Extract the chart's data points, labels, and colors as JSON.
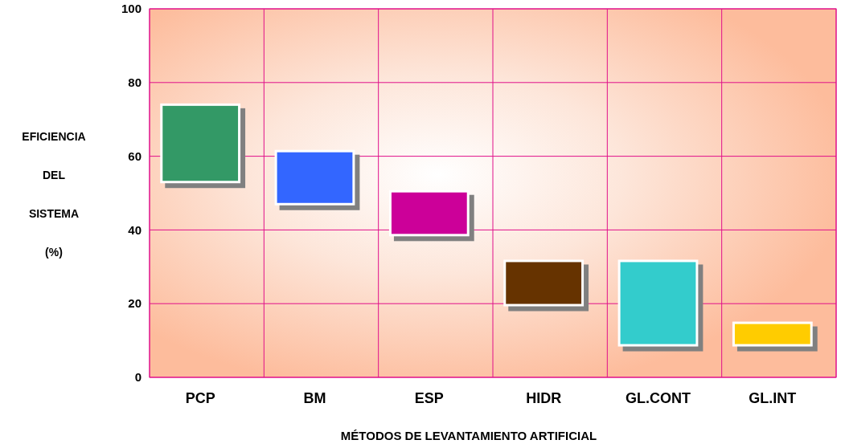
{
  "chart_data": {
    "type": "bar",
    "xlabel": "MÉTODOS DE LEVANTAMIENTO ARTIFICIAL",
    "ylabel": "EFICIENCIA DEL SISTEMA (%)",
    "categories": [
      "PCP",
      "BM",
      "ESP",
      "HIDR",
      "GL.CONT",
      "GL.INT"
    ],
    "base": [
      53,
      47,
      38.6,
      19.6,
      8.7,
      8.7
    ],
    "values": [
      21,
      14.4,
      11.9,
      12,
      22.9,
      6.1
    ],
    "colors": [
      "#339966",
      "#3366ff",
      "#cc0099",
      "#663300",
      "#33cccc",
      "#ffcc00"
    ],
    "ylim": [
      0,
      100
    ],
    "yticks": [
      0,
      20,
      40,
      60,
      80,
      100
    ],
    "grid": true
  }
}
